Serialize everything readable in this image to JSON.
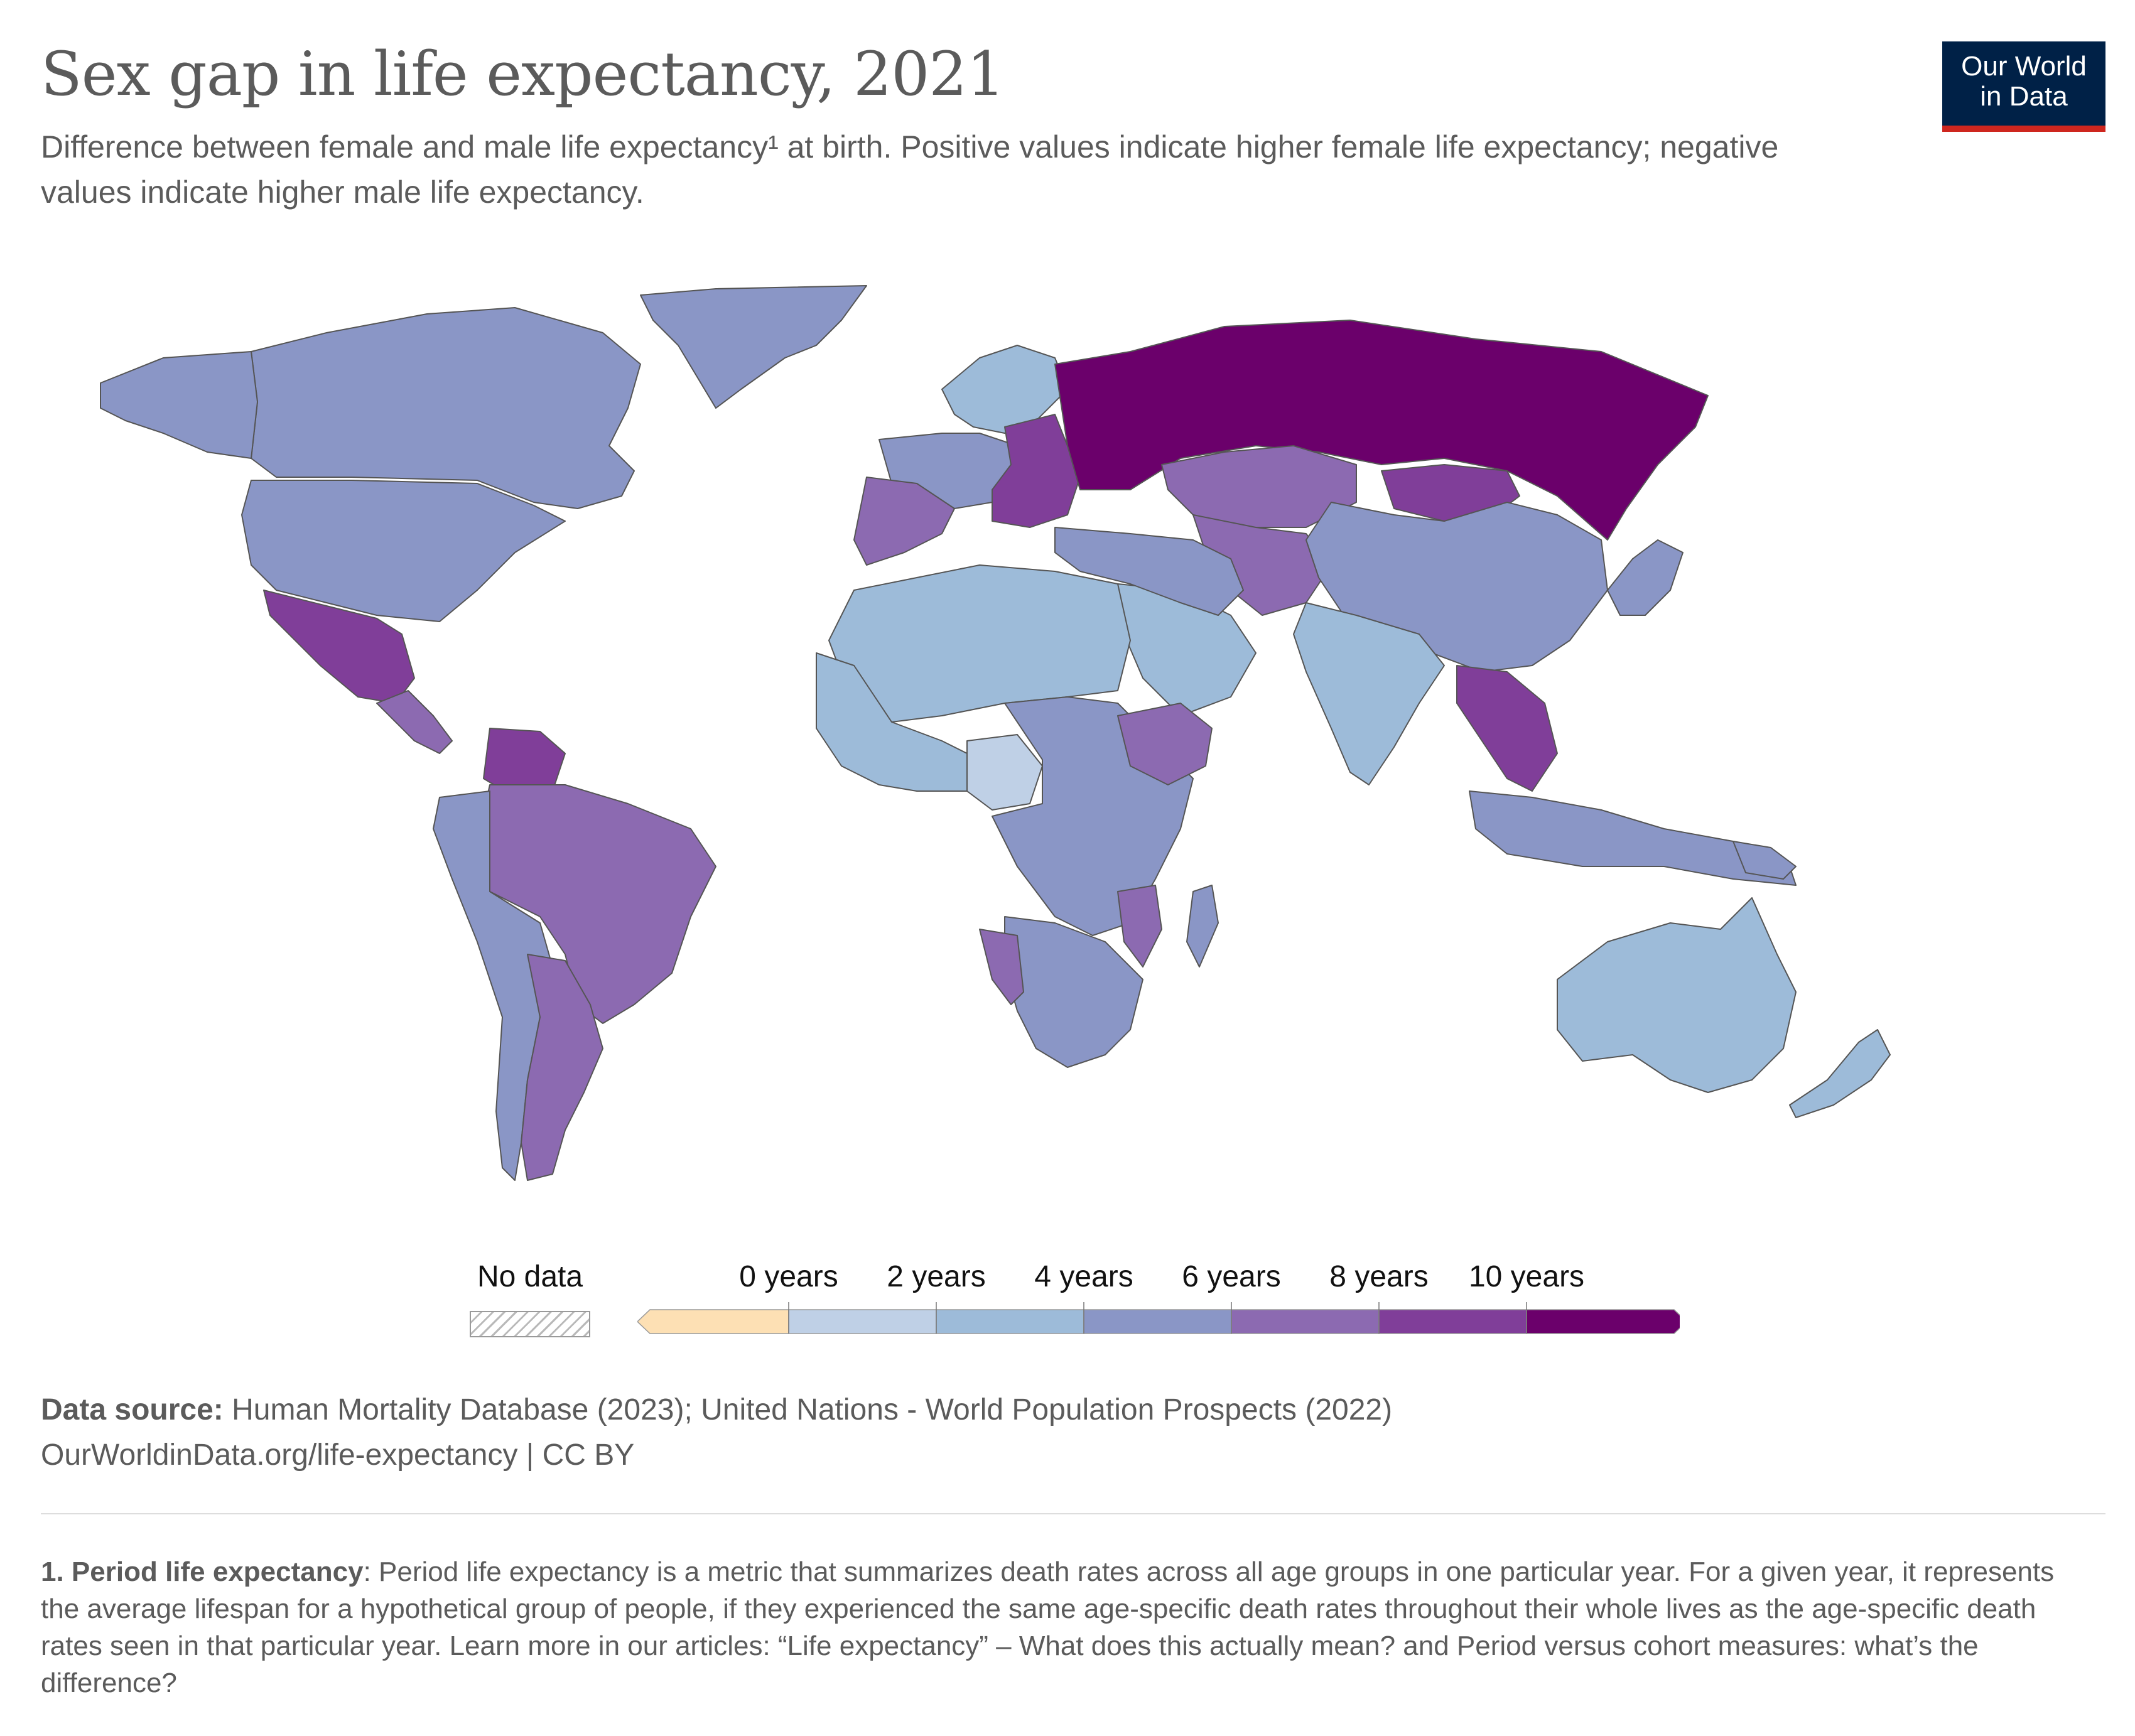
{
  "header": {
    "title": "Sex gap in life expectancy, 2021",
    "subtitle": "Difference between female and male life expectancy¹ at birth. Positive values indicate higher female life expectancy; negative values indicate higher male life expectancy.",
    "logo_line1": "Our World",
    "logo_line2": "in Data"
  },
  "colors": {
    "no_data": "#ffffff",
    "bin_below_0": "#fde0b4",
    "bin_0_2": "#bfd0e6",
    "bin_2_4": "#9dbbd9",
    "bin_4_6": "#8a96c6",
    "bin_6_8": "#8c6ab1",
    "bin_8_10": "#803e99",
    "bin_above_10": "#6b006b",
    "border": "#555555"
  },
  "chart_data": {
    "type": "choropleth",
    "title": "Sex gap in life expectancy, 2021",
    "unit": "years",
    "legend": {
      "no_data_label": "No data",
      "tick_labels": [
        "0 years",
        "2 years",
        "4 years",
        "6 years",
        "8 years",
        "10 years"
      ],
      "bins": [
        {
          "range": "<0",
          "color": "#fde0b4"
        },
        {
          "range": "0-2",
          "color": "#bfd0e6"
        },
        {
          "range": "2-4",
          "color": "#9dbbd9"
        },
        {
          "range": "4-6",
          "color": "#8a96c6"
        },
        {
          "range": "6-8",
          "color": "#8c6ab1"
        },
        {
          "range": "8-10",
          "color": "#803e99"
        },
        {
          "range": ">10",
          "color": "#6b006b"
        }
      ]
    },
    "regions": [
      {
        "name": "Greenland",
        "bin": "4-6"
      },
      {
        "name": "Canada",
        "bin": "4-6"
      },
      {
        "name": "Alaska",
        "bin": "4-6"
      },
      {
        "name": "United States",
        "bin": "4-6"
      },
      {
        "name": "Mexico",
        "bin": "8-10"
      },
      {
        "name": "Central America",
        "bin": "6-8"
      },
      {
        "name": "Venezuela",
        "bin": "8-10"
      },
      {
        "name": "Brazil",
        "bin": "6-8"
      },
      {
        "name": "Argentina",
        "bin": "6-8"
      },
      {
        "name": "Bolivia / Peru / Chile",
        "bin": "4-6"
      },
      {
        "name": "Iceland / Norway / Sweden",
        "bin": "2-4"
      },
      {
        "name": "Western Europe",
        "bin": "4-6"
      },
      {
        "name": "France / Spain",
        "bin": "6-8"
      },
      {
        "name": "Eastern Europe",
        "bin": "8-10"
      },
      {
        "name": "Russia",
        "bin": ">10"
      },
      {
        "name": "Kazakhstan",
        "bin": "6-8"
      },
      {
        "name": "Mongolia",
        "bin": "8-10"
      },
      {
        "name": "Central Asia",
        "bin": "6-8"
      },
      {
        "name": "China",
        "bin": "4-6"
      },
      {
        "name": "Japan / Korea",
        "bin": "4-6"
      },
      {
        "name": "India",
        "bin": "2-4"
      },
      {
        "name": "Arabian Peninsula",
        "bin": "2-4"
      },
      {
        "name": "Iran / Turkey",
        "bin": "4-6"
      },
      {
        "name": "Southeast Asia",
        "bin": "8-10"
      },
      {
        "name": "Indonesia / Philippines",
        "bin": "4-6"
      },
      {
        "name": "North Africa",
        "bin": "2-4"
      },
      {
        "name": "West Africa",
        "bin": "2-4"
      },
      {
        "name": "Nigeria",
        "bin": "0-2"
      },
      {
        "name": "Central / East Africa",
        "bin": "4-6"
      },
      {
        "name": "Ethiopia",
        "bin": "6-8"
      },
      {
        "name": "Southern Africa",
        "bin": "4-6"
      },
      {
        "name": "Namibia / Mozambique",
        "bin": "6-8"
      },
      {
        "name": "Madagascar",
        "bin": "4-6"
      },
      {
        "name": "Australia",
        "bin": "2-4"
      },
      {
        "name": "New Zealand",
        "bin": "2-4"
      },
      {
        "name": "Papua New Guinea",
        "bin": "4-6"
      }
    ]
  },
  "footer": {
    "source_label": "Data source:",
    "source_text": "Human Mortality Database (2023); United Nations - World Population Prospects (2022)",
    "url_line": "OurWorldinData.org/life-expectancy | CC BY",
    "footnote_label": "1. Period life expectancy",
    "footnote_text": ": Period life expectancy is a metric that summarizes death rates across all age groups in one particular year. For a given year, it represents the average lifespan for a hypothetical group of people, if they experienced the same age-specific death rates throughout their whole lives as the age-specific death rates seen in that particular year. Learn more in our articles: “Life expectancy” – What does this actually mean? and Period versus cohort measures: what’s the difference?"
  }
}
